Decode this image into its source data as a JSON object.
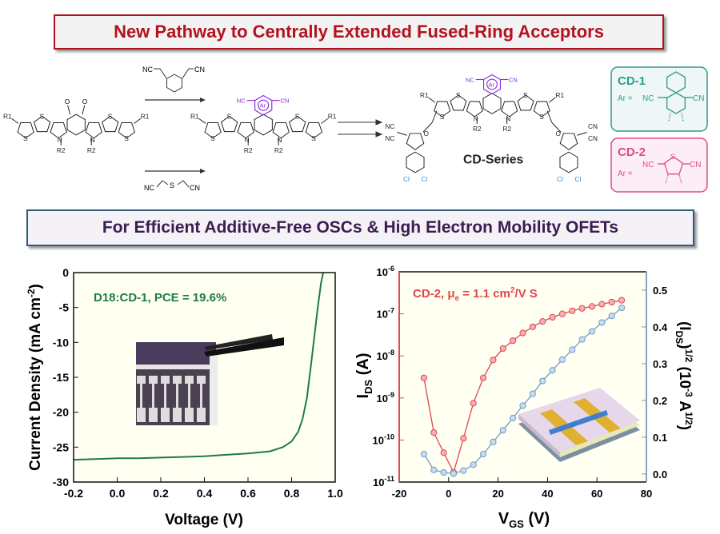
{
  "header": {
    "title": "New Pathway to Centrally Extended Fused-Ring Acceptors",
    "subtitle": "For Efficient Additive-Free OSCs & High Electron Mobility OFETs"
  },
  "scheme": {
    "atoms": {
      "nc": "NC",
      "cn": "CN",
      "s": "S",
      "n": "N",
      "o": "O",
      "cl": "Cl",
      "ar": "Ar",
      "r1": "R1",
      "r2": "R2"
    },
    "product_label": "CD-Series",
    "cd1": {
      "name": "CD-1",
      "ar_eq": "Ar =",
      "nc": "NC",
      "cn": "CN"
    },
    "cd2": {
      "name": "CD-2",
      "ar_eq": "Ar =",
      "nc": "NC",
      "cn": "CN",
      "s": "S"
    },
    "colors": {
      "ar": "#8a2be2",
      "cl": "#2a8fd8",
      "cd1": "#2f9a8f",
      "cd2": "#e0488c"
    }
  },
  "chart_data": [
    {
      "type": "line",
      "title": "",
      "annotation": "D18:CD-1, PCE = 19.6%",
      "xlabel": "Voltage (V)",
      "ylabel": "Current Density (mA cm-2)",
      "ylabel_main": "Current Density (mA cm",
      "ylabel_sup": "-2",
      "ylabel_end": ")",
      "xlim": [
        -0.2,
        1.0
      ],
      "ylim": [
        -30,
        0
      ],
      "xticks": [
        "-0.2",
        "0.0",
        "0.2",
        "0.4",
        "0.6",
        "0.8",
        "1.0"
      ],
      "yticks": [
        "0",
        "-5",
        "-10",
        "-15",
        "-20",
        "-25",
        "-30"
      ],
      "color": "#1f7a4a",
      "series": [
        {
          "name": "D18:CD-1",
          "x": [
            -0.2,
            -0.1,
            0.0,
            0.1,
            0.2,
            0.3,
            0.4,
            0.5,
            0.6,
            0.7,
            0.76,
            0.8,
            0.83,
            0.85,
            0.87,
            0.89,
            0.905,
            0.92,
            0.935,
            0.945
          ],
          "y": [
            -26.8,
            -26.7,
            -26.6,
            -26.6,
            -26.5,
            -26.4,
            -26.3,
            -26.1,
            -25.9,
            -25.6,
            -25.0,
            -24.2,
            -22.8,
            -21.0,
            -18.0,
            -13.0,
            -9.0,
            -5.0,
            -1.5,
            0
          ]
        }
      ]
    },
    {
      "type": "line",
      "annotation_main": "CD-2, μ",
      "annotation_sub": "e",
      "annotation_mid": " = 1.1 cm",
      "annotation_sup": "2",
      "annotation_end": "/V S",
      "xlabel_main": "V",
      "xlabel_sub": "GS",
      "xlabel_end": " (V)",
      "ylabel_main": "I",
      "ylabel_sub": "DS",
      "ylabel_end": " (A)",
      "y2label_a": "(I",
      "y2label_sub": "DS",
      "y2label_b": ")",
      "y2label_sup": "1/2",
      "y2label_c": "  (10",
      "y2label_sup2": "-3",
      "y2label_d": " A",
      "y2label_sup3": "1/2",
      "y2label_e": ")",
      "xlim": [
        -20,
        80
      ],
      "ylim_log": [
        -11,
        -6
      ],
      "y2lim": [
        -0.022,
        0.55
      ],
      "xticks": [
        "-20",
        "0",
        "20",
        "40",
        "60",
        "80"
      ],
      "yticks_exp": [
        "-6",
        "-7",
        "-8",
        "-9",
        "-10",
        "-11"
      ],
      "ytick_base": "10",
      "y2ticks": [
        "0.5",
        "0.4",
        "0.3",
        "0.2",
        "0.1",
        "0.0"
      ],
      "series": [
        {
          "name": "IDS (log)",
          "axis": "left",
          "color": "#e0474c",
          "x": [
            -10,
            -6,
            -2,
            2,
            6,
            10,
            14,
            18,
            22,
            26,
            30,
            34,
            38,
            42,
            46,
            50,
            54,
            58,
            62,
            66,
            70
          ],
          "y": [
            3e-09,
            1.5e-10,
            5e-11,
            1.7e-11,
            1.1e-10,
            7.5e-10,
            3e-09,
            8e-09,
            1.5e-08,
            2.3e-08,
            3.5e-08,
            4.9e-08,
            6.6e-08,
            8.3e-08,
            1e-07,
            1.18e-07,
            1.35e-07,
            1.5e-07,
            1.7e-07,
            1.9e-07,
            2.1e-07
          ]
        },
        {
          "name": "(IDS)^1/2",
          "axis": "right",
          "color": "#6f9cc4",
          "x": [
            -10,
            -6,
            -2,
            2,
            6,
            10,
            14,
            18,
            22,
            26,
            30,
            34,
            38,
            42,
            46,
            50,
            54,
            58,
            62,
            66,
            70
          ],
          "y": [
            0.054,
            0.011,
            0.004,
            0.001,
            0.009,
            0.025,
            0.054,
            0.087,
            0.119,
            0.152,
            0.186,
            0.218,
            0.253,
            0.282,
            0.311,
            0.338,
            0.366,
            0.388,
            0.412,
            0.43,
            0.452
          ]
        }
      ]
    }
  ]
}
